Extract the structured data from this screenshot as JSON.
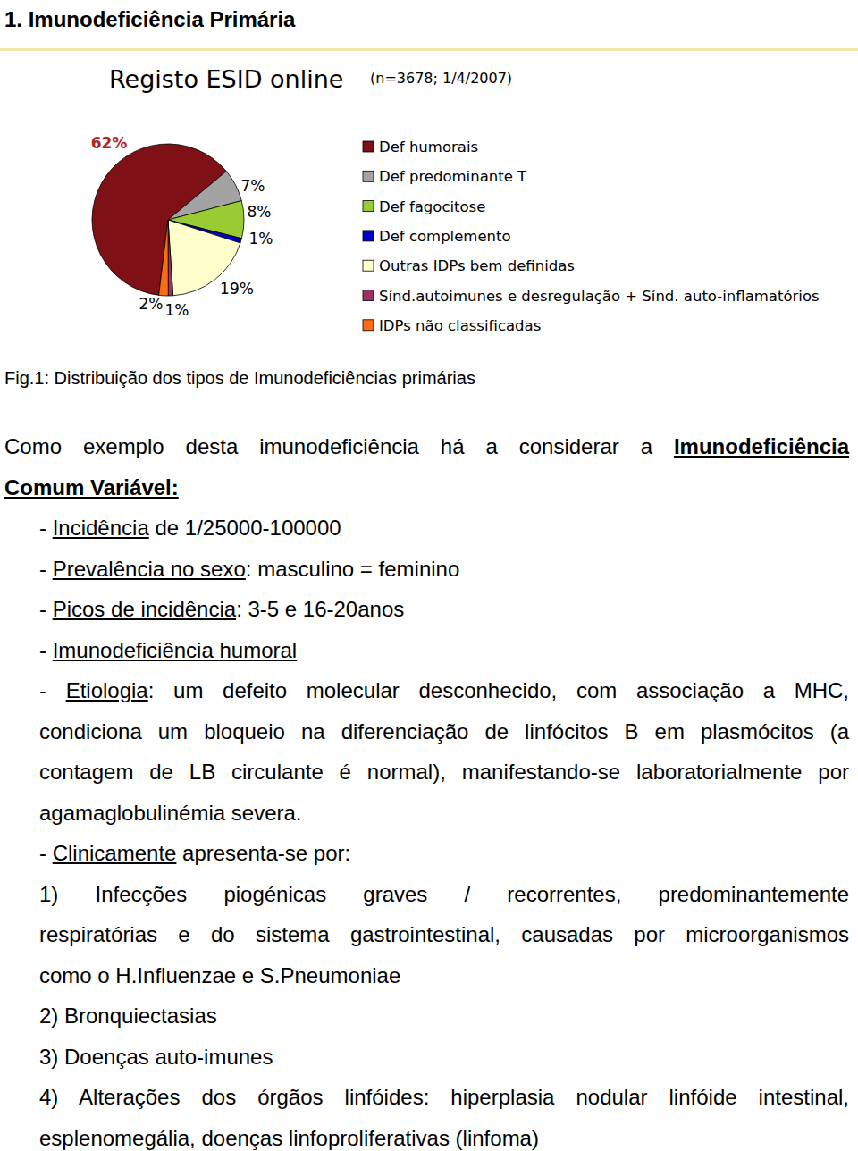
{
  "heading": "1. Imunodeficiência Primária",
  "chart_data": {
    "type": "pie",
    "title": "Registo ESID online",
    "subtitle": "(n=3678; 1/4/2007)",
    "categories": [
      "Def humorais",
      "Def predominante T",
      "Def fagocitose",
      "Def complemento",
      "Outras IDPs bem definidas",
      "Sínd.autoimunes e desregulação + Sínd. auto-inflamatórios",
      "IDPs não classificadas"
    ],
    "values": [
      62,
      7,
      8,
      1,
      19,
      1,
      2
    ],
    "value_labels": [
      "62%",
      "7%",
      "8%",
      "1%",
      "19%",
      "1%",
      "2%"
    ],
    "colors": [
      "#7f1116",
      "#a3a3a3",
      "#99cc33",
      "#0000cc",
      "#ffffcc",
      "#993366",
      "#ff6a13"
    ],
    "data_labels": true,
    "legend": "right"
  },
  "caption": "Fig.1: Distribuição dos tipos de Imunodeficiências primárias",
  "body": {
    "intro": [
      [
        "Como exemplo desta imunodeficiência há a considerar a ",
        {
          "text": "Imunodeficiência",
          "style": "bold-underline"
        }
      ],
      [
        {
          "text": "Comum Variável:",
          "style": "bold-underline"
        }
      ]
    ],
    "items": [
      [
        [
          "- ",
          {
            "text": "Incidência",
            "style": "underline"
          },
          " de 1/25000-100000"
        ]
      ],
      [
        [
          "- ",
          {
            "text": "Prevalência no sexo",
            "style": "underline"
          },
          ": masculino = feminino"
        ]
      ],
      [
        [
          "- ",
          {
            "text": "Picos de incidência",
            "style": "underline"
          },
          ": 3-5 e 16-20anos"
        ]
      ],
      [
        [
          "- ",
          {
            "text": "Imunodeficiência humoral",
            "style": "underline"
          }
        ]
      ],
      [
        [
          "- ",
          {
            "text": "Etiologia",
            "style": "underline"
          },
          ": um defeito molecular desconhecido, com associação a MHC,"
        ],
        [
          "condiciona um bloqueio na diferenciação de linfócitos B em plasmócitos (a"
        ],
        [
          "contagem de LB circulante é normal), manifestando-se laboratorialmente por"
        ],
        [
          "agamaglobulinémia severa."
        ]
      ],
      [
        [
          "- ",
          {
            "text": "Clinicamente",
            "style": "underline"
          },
          " apresenta-se por:"
        ]
      ],
      [
        [
          "1) Infecções piogénicas graves / recorrentes, predominantemente"
        ],
        [
          "respiratórias e do sistema gastrointestinal, causadas por microorganismos"
        ],
        [
          "como o H.Influenzae e S.Pneumoniae"
        ]
      ],
      [
        [
          "2) Bronquiectasias"
        ]
      ],
      [
        [
          "3) Doenças auto-imunes"
        ]
      ],
      [
        [
          "4) Alterações dos órgãos linfóides: hiperplasia nodular linfóide intestinal,"
        ],
        [
          "esplenomegália, doenças linfoproliferativas (linfoma)"
        ]
      ]
    ]
  }
}
